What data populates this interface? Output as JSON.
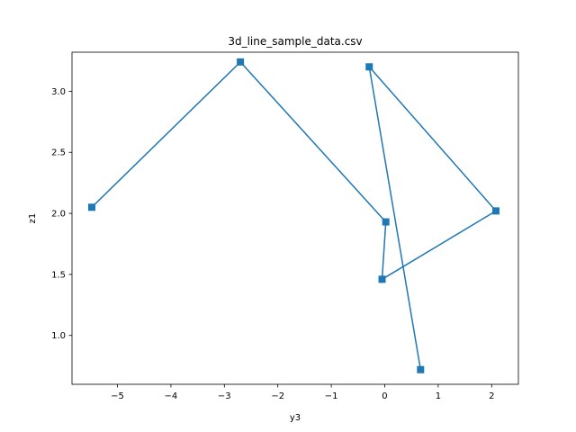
{
  "chart_data": {
    "type": "line",
    "title": "3d_line_sample_data.csv",
    "xlabel": "y3",
    "ylabel": "z1",
    "xlim": [
      -5.85,
      2.5
    ],
    "ylim": [
      0.6,
      3.32
    ],
    "xticks": [
      -5,
      -4,
      -3,
      -2,
      -1,
      0,
      1,
      2
    ],
    "xtick_labels": [
      "−5",
      "−4",
      "−3",
      "−2",
      "−1",
      "0",
      "1",
      "2"
    ],
    "yticks": [
      1.0,
      1.5,
      2.0,
      2.5,
      3.0
    ],
    "ytick_labels": [
      "1.0",
      "1.5",
      "2.0",
      "2.5",
      "3.0"
    ],
    "grid": false,
    "marker": "square",
    "color": "#1f77b4",
    "series": [
      {
        "x": [
          -5.48,
          -2.7,
          0.02,
          -0.05,
          2.08,
          -0.29,
          0.67
        ],
        "y": [
          2.05,
          3.24,
          1.93,
          1.46,
          2.02,
          3.2,
          0.72
        ]
      }
    ]
  }
}
